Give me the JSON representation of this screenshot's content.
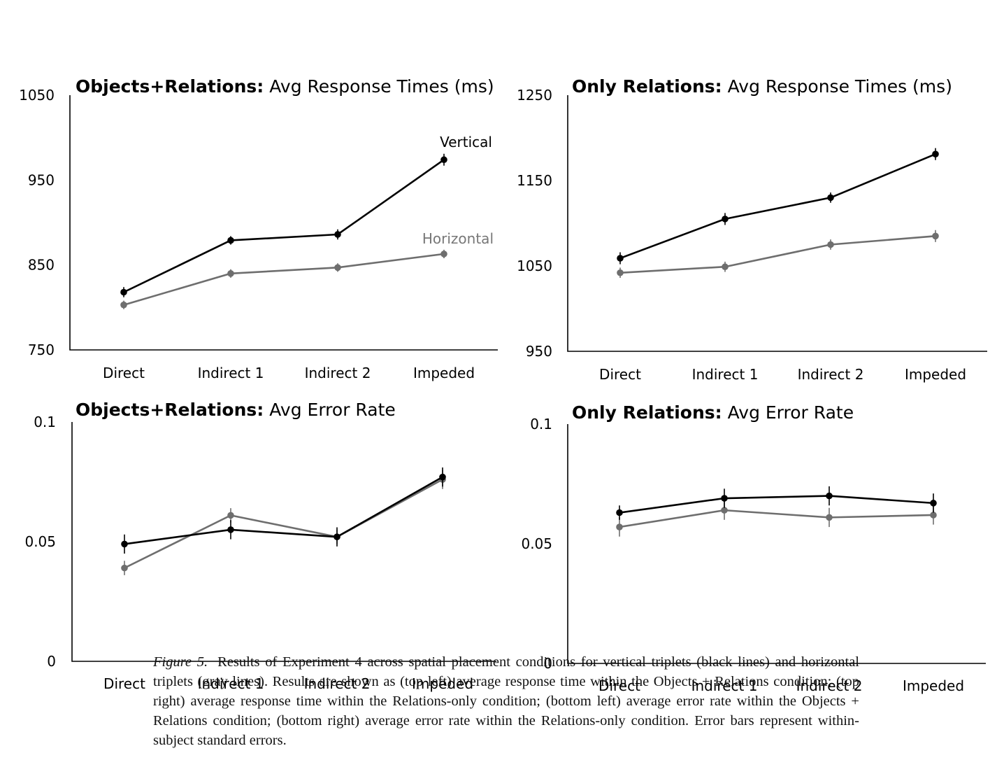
{
  "chart_data": [
    {
      "type": "line",
      "title_bold": "Objects+Relations:",
      "title_rest": "Avg Response Times (ms)",
      "categories": [
        "Direct",
        "Indirect 1",
        "Indirect 2",
        "Impeded"
      ],
      "ylim": [
        750,
        1050
      ],
      "yticks": [
        "750",
        "850",
        "950",
        "1050"
      ],
      "grid": false,
      "series": [
        {
          "name": "Vertical",
          "color": "#000000",
          "values": [
            818,
            879,
            886,
            974
          ],
          "errors": [
            6,
            5,
            6,
            7
          ]
        },
        {
          "name": "Horizontal",
          "color": "#6e6e6e",
          "values": [
            803,
            840,
            847,
            863
          ],
          "errors": [
            5,
            5,
            5,
            5
          ]
        }
      ]
    },
    {
      "type": "line",
      "title_bold": "Only Relations:",
      "title_rest": "Avg Response Times (ms)",
      "categories": [
        "Direct",
        "Indirect 1",
        "Indirect 2",
        "Impeded"
      ],
      "ylim": [
        950,
        1250
      ],
      "yticks": [
        "950",
        "1050",
        "1150",
        "1250"
      ],
      "grid": false,
      "series": [
        {
          "name": "",
          "color": "#000000",
          "values": [
            1059,
            1105,
            1130,
            1181
          ],
          "errors": [
            7,
            7,
            6,
            7
          ]
        },
        {
          "name": "",
          "color": "#6e6e6e",
          "values": [
            1042,
            1049,
            1075,
            1085
          ],
          "errors": [
            6,
            6,
            6,
            7
          ]
        }
      ]
    },
    {
      "type": "line",
      "title_bold": "Objects+Relations:",
      "title_rest": "Avg Error Rate",
      "categories": [
        "Direct",
        "Indirect 1",
        "Indirect 2",
        "Impeded"
      ],
      "ylim": [
        0,
        0.1
      ],
      "yticks": [
        "0",
        "0.05",
        "0.1"
      ],
      "grid": false,
      "series": [
        {
          "name": "",
          "color": "#000000",
          "values": [
            0.049,
            0.055,
            0.052,
            0.077
          ],
          "errors": [
            0.004,
            0.004,
            0.004,
            0.004
          ]
        },
        {
          "name": "",
          "color": "#6e6e6e",
          "values": [
            0.039,
            0.061,
            0.052,
            0.076
          ],
          "errors": [
            0.003,
            0.003,
            0.003,
            0.004
          ]
        }
      ]
    },
    {
      "type": "line",
      "title_bold": "Only Relations:",
      "title_rest": "Avg Error Rate",
      "categories": [
        "Direct",
        "Indirect 1",
        "Indirect 2",
        "Impeded"
      ],
      "ylim": [
        0,
        0.1
      ],
      "yticks": [
        "0",
        "0.05",
        "0.1"
      ],
      "grid": false,
      "series": [
        {
          "name": "",
          "color": "#000000",
          "values": [
            0.063,
            0.069,
            0.07,
            0.067
          ],
          "errors": [
            0.003,
            0.004,
            0.004,
            0.004
          ]
        },
        {
          "name": "",
          "color": "#6e6e6e",
          "values": [
            0.057,
            0.064,
            0.061,
            0.062
          ],
          "errors": [
            0.004,
            0.004,
            0.004,
            0.004
          ]
        }
      ]
    }
  ],
  "caption": {
    "label": "Figure 5.",
    "text": "Results of Experiment 4 across spatial placement conditions for vertical triplets (black lines) and horizontal triplets (gray lines). Results are shown as (top left) average response time within the Objects + Relations condition; (top right) average response time within the Relations-only condition; (bottom left) average error rate within the Objects + Relations condition; (bottom right) average error rate within the Relations-only condition. Error bars represent within-subject standard errors."
  }
}
